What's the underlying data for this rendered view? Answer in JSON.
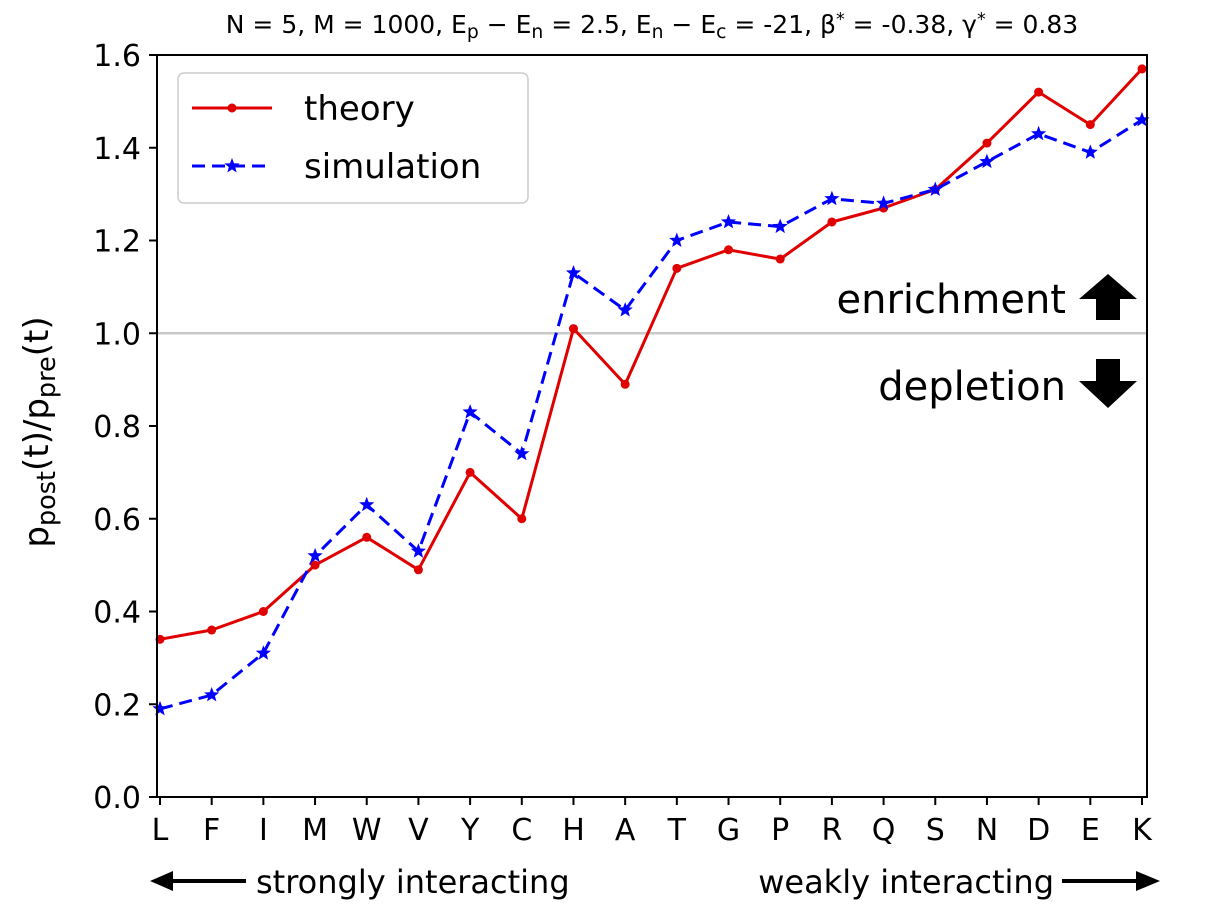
{
  "chart_data": {
    "type": "line",
    "title_parts": [
      {
        "t": "N = 5, M = 1000, E"
      },
      {
        "t": "p",
        "sub": true
      },
      {
        "t": " − E"
      },
      {
        "t": "n",
        "sub": true
      },
      {
        "t": " = 2.5, E"
      },
      {
        "t": "n",
        "sub": true
      },
      {
        "t": " − E"
      },
      {
        "t": "c",
        "sub": true
      },
      {
        "t": " = -21, β"
      },
      {
        "t": "*",
        "sup": true
      },
      {
        "t": " = -0.38, γ"
      },
      {
        "t": "*",
        "sup": true
      },
      {
        "t": " = 0.83"
      }
    ],
    "ylabel_parts": [
      {
        "t": "p"
      },
      {
        "t": "post",
        "sub": true
      },
      {
        "t": "(t)/p"
      },
      {
        "t": "pre",
        "sub": true
      },
      {
        "t": "(t)"
      }
    ],
    "categories": [
      "L",
      "F",
      "I",
      "M",
      "W",
      "V",
      "Y",
      "C",
      "H",
      "A",
      "T",
      "G",
      "P",
      "R",
      "Q",
      "S",
      "N",
      "D",
      "E",
      "K"
    ],
    "ylim": [
      0.0,
      1.6
    ],
    "yticks": [
      "0.0",
      "0.2",
      "0.4",
      "0.6",
      "0.8",
      "1.0",
      "1.2",
      "1.4",
      "1.6"
    ],
    "reference_line": 1.0,
    "grid": false,
    "legend_position": "upper-left",
    "series": [
      {
        "name": "theory",
        "color": "#e00000",
        "style": "solid",
        "marker": "dot",
        "values": [
          0.34,
          0.36,
          0.4,
          0.5,
          0.56,
          0.49,
          0.7,
          0.6,
          1.01,
          0.89,
          1.14,
          1.18,
          1.16,
          1.24,
          1.27,
          1.31,
          1.41,
          1.52,
          1.45,
          1.57
        ]
      },
      {
        "name": "simulation",
        "color": "#0000ff",
        "style": "dashed",
        "marker": "star",
        "values": [
          0.19,
          0.22,
          0.31,
          0.52,
          0.63,
          0.53,
          0.83,
          0.74,
          1.13,
          1.05,
          1.2,
          1.24,
          1.23,
          1.29,
          1.28,
          1.31,
          1.37,
          1.43,
          1.39,
          1.46
        ]
      }
    ],
    "annotations": {
      "enrichment": "enrichment",
      "depletion": "depletion",
      "strong": "strongly interacting",
      "weak": "weakly interacting"
    }
  }
}
